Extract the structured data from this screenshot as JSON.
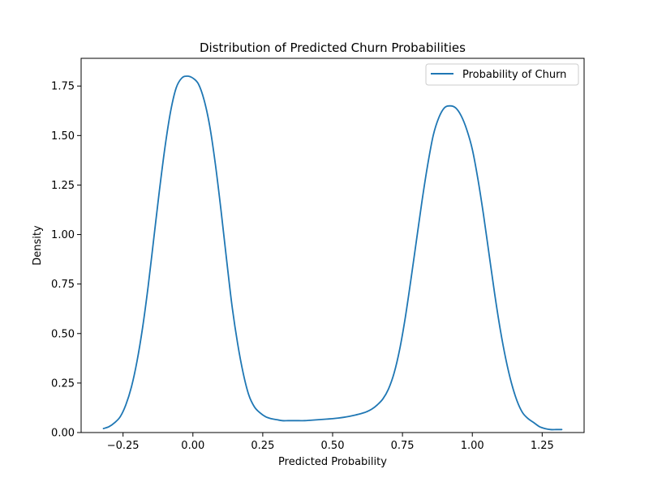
{
  "chart_data": {
    "type": "line",
    "title": "Distribution of Predicted Churn Probabilities",
    "xlabel": "Predicted Probability",
    "ylabel": "Density",
    "xlim": [
      -0.4,
      1.4
    ],
    "ylim": [
      0,
      1.89
    ],
    "xticks": [
      -0.25,
      0.0,
      0.25,
      0.5,
      0.75,
      1.0,
      1.25
    ],
    "xtick_labels": [
      "−0.25",
      "0.00",
      "0.25",
      "0.50",
      "0.75",
      "1.00",
      "1.25"
    ],
    "yticks": [
      0.0,
      0.25,
      0.5,
      0.75,
      1.0,
      1.25,
      1.5,
      1.75
    ],
    "ytick_labels": [
      "0.00",
      "0.25",
      "0.50",
      "0.75",
      "1.00",
      "1.25",
      "1.50",
      "1.75"
    ],
    "grid": false,
    "legend_position": "top-right",
    "series": [
      {
        "name": "Probability of Churn",
        "color": "#1f77b4",
        "x": [
          -0.32,
          -0.3,
          -0.28,
          -0.26,
          -0.24,
          -0.22,
          -0.2,
          -0.18,
          -0.16,
          -0.14,
          -0.12,
          -0.1,
          -0.08,
          -0.06,
          -0.04,
          -0.02,
          0.0,
          0.02,
          0.04,
          0.06,
          0.08,
          0.1,
          0.12,
          0.14,
          0.16,
          0.18,
          0.2,
          0.22,
          0.24,
          0.26,
          0.28,
          0.3,
          0.32,
          0.34,
          0.36,
          0.38,
          0.4,
          0.42,
          0.44,
          0.46,
          0.48,
          0.5,
          0.52,
          0.54,
          0.56,
          0.58,
          0.6,
          0.62,
          0.64,
          0.66,
          0.68,
          0.7,
          0.72,
          0.74,
          0.76,
          0.78,
          0.8,
          0.82,
          0.84,
          0.86,
          0.88,
          0.9,
          0.92,
          0.94,
          0.96,
          0.98,
          1.0,
          1.02,
          1.04,
          1.06,
          1.08,
          1.1,
          1.12,
          1.14,
          1.16,
          1.18,
          1.2,
          1.22,
          1.24,
          1.26,
          1.28,
          1.3,
          1.32
        ],
        "y": [
          0.02,
          0.03,
          0.05,
          0.08,
          0.14,
          0.23,
          0.36,
          0.53,
          0.74,
          0.98,
          1.22,
          1.44,
          1.62,
          1.74,
          1.79,
          1.8,
          1.79,
          1.76,
          1.68,
          1.55,
          1.36,
          1.13,
          0.88,
          0.64,
          0.45,
          0.3,
          0.19,
          0.13,
          0.1,
          0.08,
          0.07,
          0.065,
          0.06,
          0.06,
          0.06,
          0.06,
          0.06,
          0.062,
          0.064,
          0.066,
          0.068,
          0.07,
          0.073,
          0.077,
          0.082,
          0.088,
          0.095,
          0.104,
          0.118,
          0.14,
          0.17,
          0.22,
          0.3,
          0.42,
          0.58,
          0.77,
          0.97,
          1.17,
          1.35,
          1.5,
          1.59,
          1.64,
          1.65,
          1.64,
          1.6,
          1.53,
          1.43,
          1.28,
          1.1,
          0.9,
          0.7,
          0.52,
          0.37,
          0.25,
          0.16,
          0.1,
          0.07,
          0.05,
          0.03,
          0.02,
          0.015,
          0.015,
          0.015
        ]
      }
    ]
  }
}
